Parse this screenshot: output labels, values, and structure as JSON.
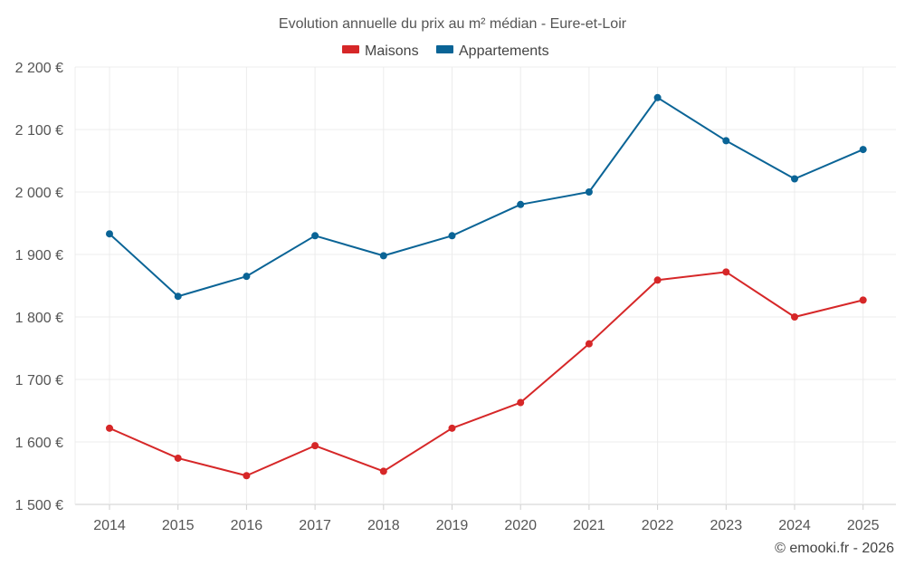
{
  "chart_data": {
    "type": "line",
    "title": "Evolution annuelle du prix au m² médian - Eure-et-Loir",
    "categories": [
      "2014",
      "2015",
      "2016",
      "2017",
      "2018",
      "2019",
      "2020",
      "2021",
      "2022",
      "2023",
      "2024",
      "2025"
    ],
    "series": [
      {
        "name": "Maisons",
        "color": "#d62728",
        "values": [
          1622,
          1574,
          1546,
          1594,
          1553,
          1622,
          1663,
          1757,
          1859,
          1872,
          1800,
          1827
        ]
      },
      {
        "name": "Appartements",
        "color": "#0a6496",
        "values": [
          1933,
          1833,
          1865,
          1930,
          1898,
          1930,
          1980,
          2000,
          2151,
          2082,
          2021,
          2068
        ]
      }
    ],
    "ylim": [
      1500,
      2200
    ],
    "yticks": [
      1500,
      1600,
      1700,
      1800,
      1900,
      2000,
      2100,
      2200
    ],
    "ytick_labels": [
      "1 500 €",
      "1 600 €",
      "1 700 €",
      "1 800 €",
      "1 900 €",
      "2 000 €",
      "2 100 €",
      "2 200 €"
    ],
    "xlabel": "",
    "ylabel": "",
    "grid": true,
    "legend_position": "top-center"
  },
  "credit": "© emooki.fr - 2026"
}
